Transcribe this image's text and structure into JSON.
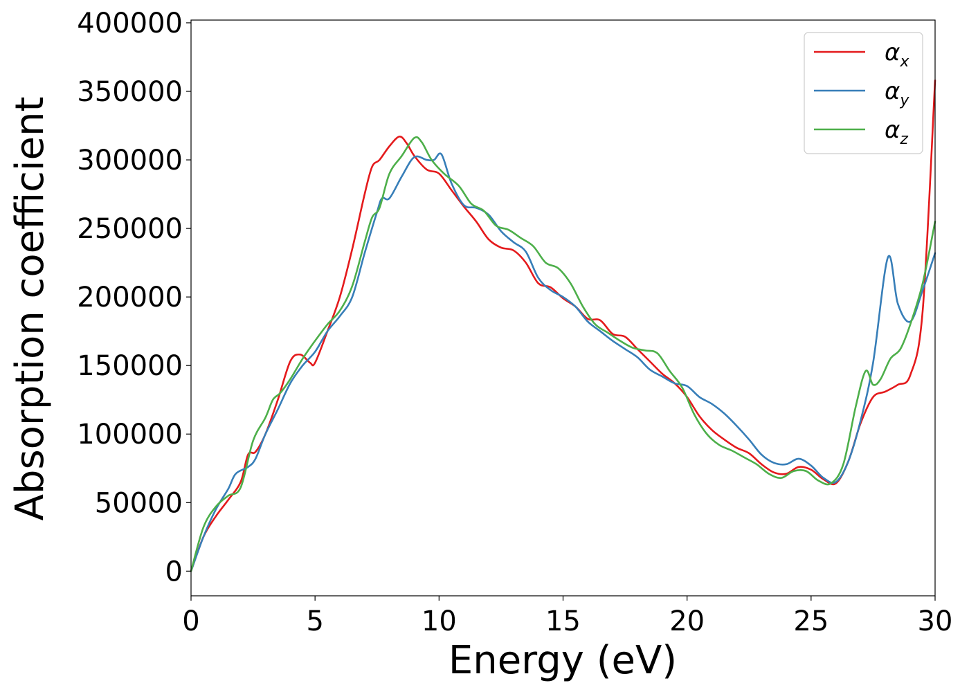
{
  "chart_data": {
    "type": "line",
    "title": "",
    "xlabel": "Energy (eV)",
    "ylabel": "Absorption coefficient",
    "xlim": [
      0,
      30
    ],
    "ylim": [
      -18000,
      402000
    ],
    "xticks": [
      0,
      5,
      10,
      15,
      20,
      25,
      30
    ],
    "xtick_labels": [
      "0",
      "5",
      "10",
      "15",
      "20",
      "25",
      "30"
    ],
    "yticks": [
      0,
      50000,
      100000,
      150000,
      200000,
      250000,
      300000,
      350000,
      400000
    ],
    "ytick_labels": [
      "0",
      "50000",
      "100000",
      "150000",
      "200000",
      "250000",
      "300000",
      "350000",
      "400000"
    ],
    "grid": false,
    "legend_position": "top-right",
    "series": [
      {
        "name": "α_x",
        "symbol": "α",
        "subscript": "x",
        "color": "#e41a1c",
        "x": [
          0,
          0.5,
          1,
          1.5,
          2,
          2.3,
          2.6,
          3,
          3.5,
          4,
          4.4,
          4.8,
          5,
          5.5,
          6,
          6.5,
          7,
          7.3,
          7.6,
          8,
          8.4,
          8.7,
          9,
          9.5,
          10,
          10.5,
          11,
          11.5,
          12,
          12.5,
          13,
          13.5,
          14,
          14.5,
          15,
          15.5,
          16,
          16.5,
          17,
          17.5,
          18,
          18.5,
          19,
          19.5,
          20,
          20.5,
          21,
          21.5,
          22,
          22.5,
          23,
          23.5,
          24,
          24.5,
          25,
          25.5,
          26,
          26.5,
          27,
          27.5,
          28,
          28.5,
          29,
          29.5,
          30
        ],
        "y": [
          0,
          25000,
          40000,
          52000,
          65000,
          85000,
          87000,
          100000,
          125000,
          153000,
          158000,
          152000,
          152000,
          175000,
          200000,
          235000,
          275000,
          295000,
          300000,
          310000,
          317000,
          312000,
          303000,
          293000,
          290000,
          278000,
          266000,
          255000,
          242000,
          236000,
          234000,
          225000,
          210000,
          207000,
          199000,
          193000,
          184000,
          183000,
          173000,
          171000,
          162000,
          153000,
          144000,
          137000,
          127000,
          113000,
          103000,
          96000,
          90000,
          86000,
          78000,
          72000,
          71000,
          76000,
          74000,
          67000,
          64000,
          80000,
          108000,
          127000,
          131000,
          136000,
          143000,
          190000,
          358000
        ]
      },
      {
        "name": "α_y",
        "symbol": "α",
        "subscript": "y",
        "color": "#377eb8",
        "x": [
          0,
          0.5,
          1,
          1.5,
          1.8,
          2.3,
          2.6,
          3,
          3.5,
          4,
          4.5,
          5,
          5.5,
          6,
          6.5,
          7,
          7.5,
          7.7,
          8,
          8.5,
          9,
          9.5,
          9.8,
          10.1,
          10.5,
          11,
          11.5,
          12,
          12.5,
          13,
          13.5,
          14,
          14.5,
          15,
          15.5,
          16,
          16.5,
          17,
          17.5,
          18,
          18.5,
          19,
          19.5,
          20,
          20.5,
          21,
          21.5,
          22,
          22.5,
          23,
          23.5,
          24,
          24.5,
          25,
          25.5,
          26,
          26.5,
          27,
          27.5,
          28.1,
          28.5,
          29,
          29.5,
          30
        ],
        "y": [
          0,
          25000,
          45000,
          60000,
          71000,
          76000,
          82000,
          100000,
          118000,
          137000,
          150000,
          160000,
          175000,
          186000,
          200000,
          232000,
          262000,
          272000,
          272000,
          288000,
          302000,
          300000,
          300000,
          304000,
          283000,
          267000,
          265000,
          260000,
          248000,
          240000,
          233000,
          214000,
          205000,
          200000,
          193000,
          182000,
          175000,
          168000,
          162000,
          156000,
          147000,
          142000,
          137000,
          135000,
          127000,
          122000,
          115000,
          106000,
          96000,
          85000,
          79000,
          78000,
          82000,
          77000,
          68000,
          65000,
          80000,
          110000,
          152000,
          229000,
          195000,
          182000,
          205000,
          232000
        ]
      },
      {
        "name": "α_z",
        "symbol": "α",
        "subscript": "z",
        "color": "#4daf4a",
        "x": [
          0,
          0.5,
          1,
          1.5,
          2,
          2.5,
          3,
          3.3,
          3.6,
          4,
          4.5,
          5,
          5.5,
          6,
          6.5,
          7,
          7.3,
          7.6,
          8,
          8.5,
          9,
          9.3,
          9.7,
          10.2,
          10.8,
          11.3,
          11.8,
          12.3,
          12.8,
          13.3,
          13.8,
          14.3,
          14.8,
          15.3,
          15.8,
          16.3,
          16.8,
          17.3,
          17.8,
          18.3,
          18.8,
          19.3,
          19.8,
          20.3,
          20.8,
          21.3,
          21.8,
          22.3,
          22.8,
          23.3,
          23.8,
          24.3,
          24.8,
          25.3,
          25.8,
          26.3,
          26.8,
          27.2,
          27.5,
          27.8,
          28.2,
          28.6,
          29,
          29.5,
          30
        ],
        "y": [
          0,
          32000,
          47000,
          55000,
          61000,
          95000,
          112000,
          125000,
          130000,
          140000,
          155000,
          168000,
          180000,
          190000,
          208000,
          240000,
          258000,
          265000,
          290000,
          303000,
          316000,
          313000,
          300000,
          290000,
          281000,
          268000,
          263000,
          252000,
          249000,
          243000,
          237000,
          225000,
          221000,
          210000,
          193000,
          180000,
          174000,
          168000,
          163000,
          161000,
          159000,
          146000,
          134000,
          114000,
          100000,
          92000,
          88000,
          83000,
          78000,
          71000,
          68000,
          73000,
          73000,
          66000,
          64000,
          78000,
          120000,
          146000,
          136000,
          140000,
          155000,
          162000,
          180000,
          210000,
          255000
        ]
      }
    ]
  }
}
